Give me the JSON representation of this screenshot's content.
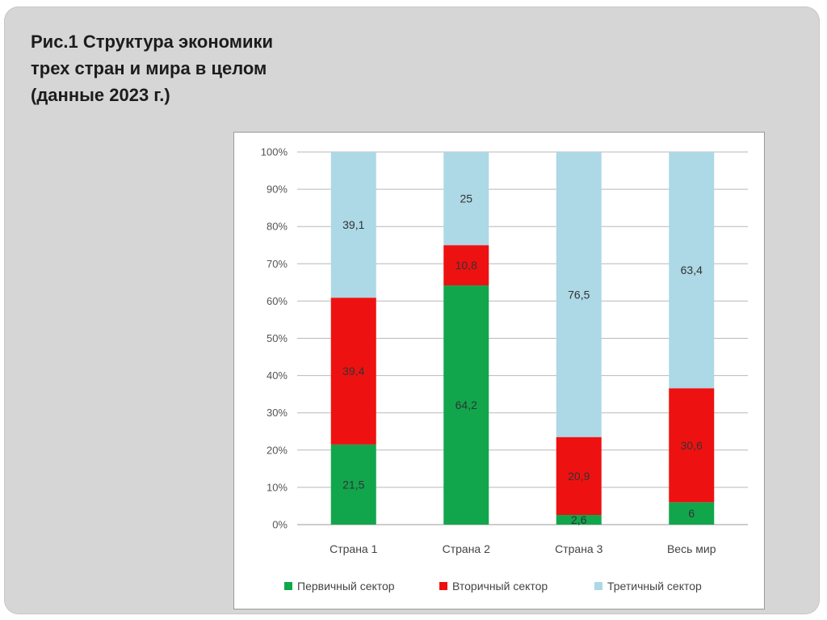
{
  "slide": {
    "title": "Рис.1 Структура экономики\nтрех стран и мира в целом\n(данные 2023 г.)"
  },
  "chart_data": {
    "type": "bar",
    "stacked": true,
    "normalized": true,
    "categories": [
      "Страна 1",
      "Страна 2",
      "Страна 3",
      "Весь мир"
    ],
    "series": [
      {
        "name": "Первичный сектор",
        "values": [
          21.5,
          64.2,
          2.6,
          6
        ],
        "labels": [
          "21,5",
          "64,2",
          "2,6",
          "6"
        ],
        "color": "#11a64c"
      },
      {
        "name": "Вторичный сектор",
        "values": [
          39.4,
          10.8,
          20.9,
          30.6
        ],
        "labels": [
          "39,4",
          "10,8",
          "20,9",
          "30,6"
        ],
        "color": "#ee1111"
      },
      {
        "name": "Третичный сектор",
        "values": [
          39.1,
          25,
          76.5,
          63.4
        ],
        "labels": [
          "39,1",
          "25",
          "76,5",
          "63,4"
        ],
        "color": "#add8e6"
      }
    ],
    "yticks": [
      "0%",
      "10%",
      "20%",
      "30%",
      "40%",
      "50%",
      "60%",
      "70%",
      "80%",
      "90%",
      "100%"
    ],
    "ylim": [
      0,
      100
    ],
    "grid": true,
    "legend_position": "bottom"
  }
}
